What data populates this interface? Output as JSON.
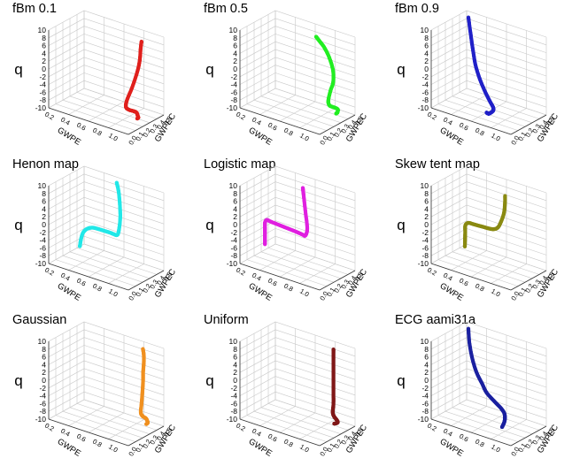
{
  "chart_data": [
    {
      "type": "scatter3d",
      "title": "fBm 0.1",
      "color": "#e0201c",
      "z_label": "q",
      "x_label": "GWPE",
      "y_label": "GWPEC",
      "z_ticks": [
        "10",
        "8",
        "6",
        "4",
        "2",
        "0",
        "-2",
        "-4",
        "-6",
        "-8",
        "-10"
      ],
      "x_ticks": [
        "0.2",
        "0.4",
        "0.6",
        "0.8",
        "1.0"
      ],
      "y_ticks": [
        "0.0",
        "0.1",
        "0.2",
        "0.3",
        "0.4",
        "0.5"
      ],
      "zlim": [
        -10,
        10
      ],
      "xlim": [
        0.1,
        1.0
      ],
      "ylim": [
        0.0,
        0.5
      ],
      "series": [
        {
          "x": [
            0.86,
            0.88,
            0.89,
            0.9,
            0.9,
            0.89,
            0.86,
            0.82,
            0.8,
            0.82,
            0.86,
            0.88,
            0.89,
            0.9
          ],
          "y": [
            0.2,
            0.21,
            0.23,
            0.25,
            0.27,
            0.3,
            0.32,
            0.31,
            0.27,
            0.22,
            0.2,
            0.19,
            0.19,
            0.19
          ],
          "z": [
            -10,
            -9.5,
            -8.8,
            -8,
            -7.3,
            -6.8,
            -6.5,
            -6.2,
            -5,
            -2,
            2,
            5,
            8,
            10
          ]
        }
      ]
    },
    {
      "type": "scatter3d",
      "title": "fBm 0.5",
      "color": "#22ee22",
      "z_label": "q",
      "x_label": "GWPE",
      "y_label": "GWPEC",
      "z_ticks": [
        "10",
        "8",
        "6",
        "4",
        "2",
        "0",
        "-2",
        "-4",
        "-6",
        "-8",
        "-10"
      ],
      "x_ticks": [
        "0.2",
        "0.4",
        "0.6",
        "0.8",
        "1.0"
      ],
      "y_ticks": [
        "0.0",
        "0.1",
        "0.2",
        "0.3",
        "0.4",
        "0.5"
      ],
      "zlim": [
        -10,
        10
      ],
      "xlim": [
        0.1,
        1.0
      ],
      "ylim": [
        0.0,
        0.5
      ],
      "series": [
        {
          "x": [
            0.85,
            0.87,
            0.89,
            0.91,
            0.91,
            0.9,
            0.87,
            0.85,
            0.86,
            0.88,
            0.88,
            0.85,
            0.8,
            0.75,
            0.72
          ],
          "y": [
            0.08,
            0.09,
            0.11,
            0.13,
            0.16,
            0.19,
            0.2,
            0.19,
            0.17,
            0.16,
            0.16,
            0.17,
            0.18,
            0.19,
            0.2
          ],
          "z": [
            -10,
            -9.5,
            -9,
            -8,
            -7.3,
            -6.8,
            -6.5,
            -5.5,
            -3,
            -1,
            2,
            5,
            7.5,
            9,
            10
          ]
        }
      ]
    },
    {
      "type": "scatter3d",
      "title": "fBm 0.9",
      "color": "#2020c8",
      "z_label": "q",
      "x_label": "GWPE",
      "y_label": "GWPEC",
      "z_ticks": [
        "10",
        "8",
        "6",
        "4",
        "2",
        "0",
        "-2",
        "-4",
        "-6",
        "-8",
        "-10"
      ],
      "x_ticks": [
        "0.2",
        "0.4",
        "0.6",
        "0.8",
        "1.0"
      ],
      "y_ticks": [
        "0.0",
        "0.1",
        "0.2",
        "0.3",
        "0.4",
        "0.5"
      ],
      "zlim": [
        -10,
        10
      ],
      "xlim": [
        0.1,
        1.0
      ],
      "ylim": [
        0.0,
        0.5
      ],
      "series": [
        {
          "x": [
            0.55,
            0.58,
            0.63,
            0.68,
            0.72,
            0.72,
            0.65,
            0.55,
            0.45,
            0.36,
            0.29,
            0.24,
            0.2
          ],
          "y": [
            0.28,
            0.31,
            0.35,
            0.38,
            0.4,
            0.4,
            0.36,
            0.3,
            0.25,
            0.2,
            0.15,
            0.12,
            0.1
          ],
          "z": [
            -10,
            -9.6,
            -9,
            -8,
            -7,
            -6.2,
            -5.5,
            -4.5,
            -2.5,
            0,
            3,
            6.5,
            10
          ]
        }
      ]
    },
    {
      "type": "scatter3d",
      "title": "Henon map",
      "color": "#22e8e8",
      "z_label": "q",
      "x_label": "GWPE",
      "y_label": "GWPEC",
      "z_ticks": [
        "10",
        "8",
        "6",
        "4",
        "2",
        "0",
        "-2",
        "-4",
        "-6",
        "-8",
        "-10"
      ],
      "x_ticks": [
        "0.2",
        "0.4",
        "0.6",
        "0.8",
        "1.0"
      ],
      "y_ticks": [
        "0.0",
        "0.1",
        "0.2",
        "0.3",
        "0.4",
        "0.5"
      ],
      "zlim": [
        -10,
        10
      ],
      "xlim": [
        0.1,
        1.0
      ],
      "ylim": [
        0.0,
        0.5
      ],
      "series": [
        {
          "x": [
            0.1,
            0.12,
            0.15,
            0.2,
            0.27,
            0.35,
            0.43,
            0.5,
            0.55,
            0.6,
            0.62,
            0.62,
            0.6,
            0.57,
            0.54
          ],
          "y": [
            0.06,
            0.07,
            0.08,
            0.09,
            0.1,
            0.12,
            0.13,
            0.14,
            0.15,
            0.16,
            0.16,
            0.14,
            0.12,
            0.1,
            0.09
          ],
          "z": [
            -10,
            -8,
            -6,
            -4.5,
            -3.5,
            -3,
            -2.8,
            -2.6,
            -2.5,
            -2.3,
            -1,
            2,
            5,
            8,
            10
          ]
        }
      ]
    },
    {
      "type": "scatter3d",
      "title": "Logistic map",
      "color": "#e020e0",
      "z_label": "q",
      "x_label": "GWPE",
      "y_label": "GWPEC",
      "z_ticks": [
        "10",
        "8",
        "6",
        "4",
        "2",
        "0",
        "-2",
        "-4",
        "-6",
        "-8",
        "-10"
      ],
      "x_ticks": [
        "0.2",
        "0.4",
        "0.6",
        "0.8",
        "1.0"
      ],
      "y_ticks": [
        "0.0",
        "0.1",
        "0.2",
        "0.3",
        "0.4",
        "0.5"
      ],
      "zlim": [
        -10,
        10
      ],
      "xlim": [
        0.1,
        1.0
      ],
      "ylim": [
        0.0,
        0.5
      ],
      "series": [
        {
          "x": [
            0.03,
            0.03,
            0.03,
            0.03,
            0.05,
            0.12,
            0.22,
            0.32,
            0.42,
            0.5,
            0.56,
            0.6,
            0.62,
            0.6,
            0.58,
            0.57
          ],
          "y": [
            0.06,
            0.06,
            0.06,
            0.06,
            0.06,
            0.09,
            0.11,
            0.13,
            0.15,
            0.17,
            0.19,
            0.2,
            0.2,
            0.2,
            0.2,
            0.2
          ],
          "z": [
            -10,
            -8,
            -6,
            -4.5,
            -3.6,
            -3.2,
            -3,
            -2.8,
            -2.6,
            -2.4,
            -2.2,
            -2,
            0,
            4,
            8,
            10
          ]
        }
      ]
    },
    {
      "type": "scatter3d",
      "title": "Skew tent map",
      "color": "#8a8a12",
      "z_label": "q",
      "x_label": "GWPE",
      "y_label": "GWPEC",
      "z_ticks": [
        "10",
        "8",
        "6",
        "4",
        "2",
        "0",
        "-2",
        "-4",
        "-6",
        "-8",
        "-10"
      ],
      "x_ticks": [
        "0.2",
        "0.4",
        "0.6",
        "0.8",
        "1.0"
      ],
      "y_ticks": [
        "0.0",
        "0.1",
        "0.2",
        "0.3",
        "0.4",
        "0.5"
      ],
      "zlim": [
        -10,
        10
      ],
      "xlim": [
        0.1,
        1.0
      ],
      "ylim": [
        0.0,
        0.5
      ],
      "series": [
        {
          "x": [
            0.12,
            0.13,
            0.14,
            0.15,
            0.2,
            0.27,
            0.35,
            0.42,
            0.5,
            0.57,
            0.63,
            0.68,
            0.72,
            0.74,
            0.75
          ],
          "y": [
            0.05,
            0.06,
            0.07,
            0.08,
            0.1,
            0.12,
            0.14,
            0.16,
            0.18,
            0.2,
            0.22,
            0.24,
            0.25,
            0.26,
            0.27
          ],
          "z": [
            -10,
            -8,
            -6,
            -4,
            -2.8,
            -2.4,
            -2,
            -1.6,
            -1.2,
            -0.6,
            0.5,
            2.5,
            5,
            7.5,
            10
          ]
        }
      ]
    },
    {
      "type": "scatter3d",
      "title": "Gaussian",
      "color": "#f09020",
      "z_label": "q",
      "x_label": "GWPE",
      "y_label": "GWPEC",
      "z_ticks": [
        "10",
        "8",
        "6",
        "4",
        "2",
        "0",
        "-2",
        "-4",
        "-6",
        "-8",
        "-10"
      ],
      "x_ticks": [
        "0.2",
        "0.4",
        "0.6",
        "0.8",
        "1.0"
      ],
      "y_ticks": [
        "0.0",
        "0.1",
        "0.2",
        "0.3",
        "0.4",
        "0.5"
      ],
      "zlim": [
        -10,
        10
      ],
      "xlim": [
        0.1,
        1.0
      ],
      "ylim": [
        0.0,
        0.5
      ],
      "series": [
        {
          "x": [
            0.85,
            0.87,
            0.89,
            0.9,
            0.9,
            0.88,
            0.86,
            0.86,
            0.87,
            0.87,
            0.87,
            0.87,
            0.87,
            0.86
          ],
          "y": [
            0.06,
            0.07,
            0.09,
            0.11,
            0.13,
            0.15,
            0.15,
            0.14,
            0.14,
            0.13,
            0.13,
            0.12,
            0.12,
            0.12
          ],
          "z": [
            -10,
            -9.5,
            -9,
            -8.2,
            -7.4,
            -6.8,
            -6,
            -4,
            -1,
            2,
            4,
            6.5,
            8.5,
            10
          ]
        }
      ]
    },
    {
      "type": "scatter3d",
      "title": "Uniform",
      "color": "#801818",
      "z_label": "q",
      "x_label": "GWPE",
      "y_label": "GWPEC",
      "z_ticks": [
        "10",
        "8",
        "6",
        "4",
        "2",
        "0",
        "-2",
        "-4",
        "-6",
        "-8",
        "-10"
      ],
      "x_ticks": [
        "0.2",
        "0.4",
        "0.6",
        "0.8",
        "1.0"
      ],
      "y_ticks": [
        "0.0",
        "0.1",
        "0.2",
        "0.3",
        "0.4",
        "0.5"
      ],
      "zlim": [
        -10,
        10
      ],
      "xlim": [
        0.1,
        1.0
      ],
      "ylim": [
        0.0,
        0.5
      ],
      "series": [
        {
          "x": [
            0.82,
            0.85,
            0.88,
            0.9,
            0.9,
            0.88,
            0.86,
            0.86,
            0.86,
            0.86,
            0.86,
            0.86,
            0.86
          ],
          "y": [
            0.07,
            0.08,
            0.1,
            0.12,
            0.14,
            0.15,
            0.14,
            0.13,
            0.13,
            0.13,
            0.13,
            0.13,
            0.13
          ],
          "z": [
            -10,
            -9.6,
            -9,
            -8.4,
            -7.6,
            -6.8,
            -6,
            -4,
            -1,
            2,
            5,
            8,
            10
          ]
        }
      ]
    },
    {
      "type": "scatter3d",
      "title": "ECG aami31a",
      "color": "#1a20a0",
      "z_label": "q",
      "x_label": "GWPE",
      "y_label": "GWPEC",
      "z_ticks": [
        "10",
        "8",
        "6",
        "4",
        "2",
        "0",
        "-2",
        "-4",
        "-6",
        "-8",
        "-10"
      ],
      "x_ticks": [
        "0.2",
        "0.4",
        "0.6",
        "0.8",
        "1.0"
      ],
      "y_ticks": [
        "0.0",
        "0.1",
        "0.2",
        "0.3",
        "0.4",
        "0.5"
      ],
      "zlim": [
        -10,
        10
      ],
      "xlim": [
        0.1,
        1.0
      ],
      "ylim": [
        0.0,
        0.5
      ],
      "series": [
        {
          "x": [
            0.7,
            0.72,
            0.75,
            0.78,
            0.79,
            0.76,
            0.68,
            0.55,
            0.45,
            0.35,
            0.27,
            0.22,
            0.2
          ],
          "y": [
            0.25,
            0.26,
            0.28,
            0.31,
            0.33,
            0.34,
            0.33,
            0.28,
            0.22,
            0.17,
            0.13,
            0.11,
            0.1
          ],
          "z": [
            -10,
            -9.2,
            -8,
            -6.5,
            -5,
            -3.8,
            -2.8,
            -2,
            -1,
            0.5,
            3,
            6.5,
            10
          ]
        }
      ]
    }
  ]
}
